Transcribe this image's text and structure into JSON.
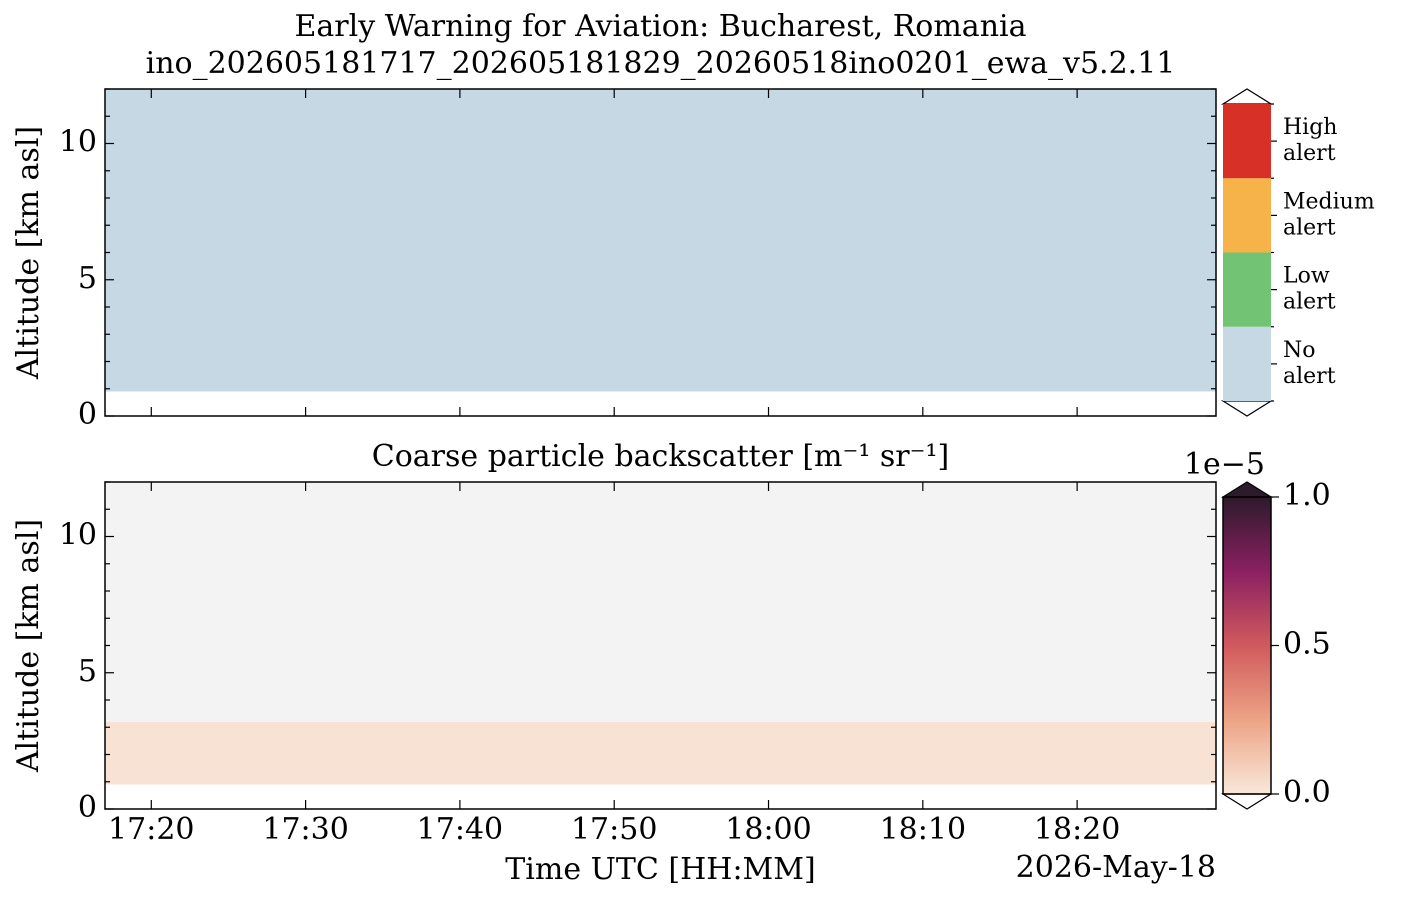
{
  "chart_data": [
    {
      "type": "heatmap",
      "title": "Early Warning for Aviation: Bucharest, Romania",
      "subtitle": "ino_202605181717_202605181829_20260518ino0201_ewa_v5.2.11",
      "ylabel": "Altitude [km asl]",
      "xlim": [
        1037,
        1109
      ],
      "xticks": [
        {
          "value": 1040,
          "label": "17:20"
        },
        {
          "value": 1050,
          "label": "17:30"
        },
        {
          "value": 1060,
          "label": "17:40"
        },
        {
          "value": 1070,
          "label": "17:50"
        },
        {
          "value": 1080,
          "label": "18:00"
        },
        {
          "value": 1090,
          "label": "18:10"
        },
        {
          "value": 1100,
          "label": "18:20"
        }
      ],
      "xticklabels": false,
      "ylim": [
        0,
        12
      ],
      "yticks": [
        0,
        5,
        10
      ],
      "yminorticks": [
        1,
        2,
        3,
        4,
        6,
        7,
        8,
        9,
        11,
        12
      ],
      "cells": [
        {
          "x": [
            1037,
            1109
          ],
          "y": [
            0.9,
            12
          ],
          "value": 0
        }
      ],
      "colorbar": {
        "type": "categorical",
        "levels": [
          {
            "label": [
              "No",
              "alert"
            ],
            "color": "#c5d8e3"
          },
          {
            "label": [
              "Low",
              "alert"
            ],
            "color": "#72c474"
          },
          {
            "label": [
              "Medium",
              "alert"
            ],
            "color": "#f6b34a"
          },
          {
            "label": [
              "High",
              "alert"
            ],
            "color": "#d73027"
          }
        ]
      }
    },
    {
      "type": "heatmap",
      "title": "Coarse particle backscatter [m⁻¹ sr⁻¹]",
      "ylabel": "Altitude [km asl]",
      "xlabel": "Time UTC [HH:MM]",
      "date_label": "2026-May-18",
      "xlim": [
        1037,
        1109
      ],
      "xticks": [
        {
          "value": 1040,
          "label": "17:20"
        },
        {
          "value": 1050,
          "label": "17:30"
        },
        {
          "value": 1060,
          "label": "17:40"
        },
        {
          "value": 1070,
          "label": "17:50"
        },
        {
          "value": 1080,
          "label": "18:00"
        },
        {
          "value": 1090,
          "label": "18:10"
        },
        {
          "value": 1100,
          "label": "18:20"
        }
      ],
      "xticklabels": true,
      "ylim": [
        0,
        12
      ],
      "yticks": [
        0,
        5,
        10
      ],
      "yminorticks": [
        1,
        2,
        3,
        4,
        6,
        7,
        8,
        9,
        11,
        12
      ],
      "nodata_color": "#f3f3f3",
      "cells": [
        {
          "x": [
            1037,
            1109
          ],
          "y": [
            0.9,
            3.2
          ],
          "value": 0.02
        },
        {
          "x": [
            1037,
            1109
          ],
          "y": [
            3.2,
            12
          ],
          "value": null
        }
      ],
      "colorbar": {
        "type": "continuous",
        "clim": [
          0,
          1
        ],
        "ticks": [
          {
            "value": 0,
            "label": "0.0"
          },
          {
            "value": 0.5,
            "label": "0.5"
          },
          {
            "value": 1,
            "label": "1.0"
          }
        ],
        "offset_label": "1e−5",
        "colormap": [
          "#f8e8da",
          "#eda385",
          "#d05a5d",
          "#8b2062",
          "#2d1a2b"
        ]
      }
    }
  ]
}
